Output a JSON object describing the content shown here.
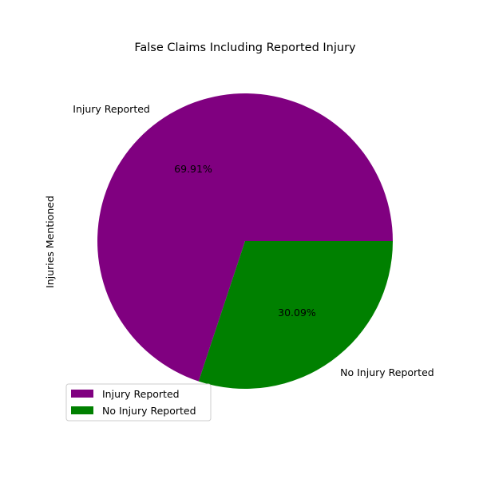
{
  "chart_data": {
    "type": "pie",
    "title": "False Claims Including Reported Injury",
    "ylabel": "Injuries Mentioned",
    "categories": [
      "Injury Reported",
      "No Injury Reported"
    ],
    "values": [
      69.91,
      30.09
    ],
    "percent_labels": [
      "69.91%",
      "30.09%"
    ],
    "colors": [
      "#800080",
      "#008000"
    ],
    "legend": {
      "entries": [
        "Injury Reported",
        "No Injury Reported"
      ],
      "placement": "lower-left"
    }
  }
}
